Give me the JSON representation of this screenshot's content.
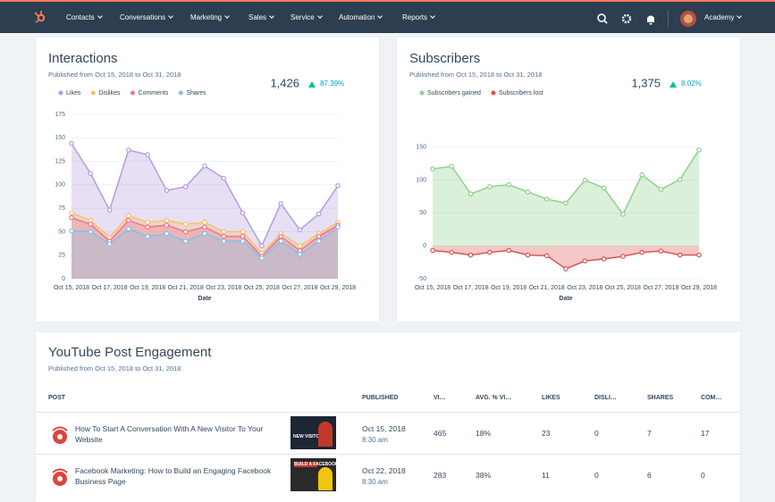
{
  "nav": {
    "items": [
      "Contacts",
      "Conversations",
      "Marketing",
      "Sales",
      "Service",
      "Automation",
      "Reports"
    ],
    "account": "Academy"
  },
  "chart_data": [
    {
      "type": "area",
      "title": "Interactions",
      "subtitle": "Published from Oct 15, 2018 to Oct 31, 2018",
      "total": "1,426",
      "change": "87.39%",
      "x_label": "Date",
      "categories": [
        "Oct 15, 2018",
        null,
        "Oct 17, 2018",
        null,
        "Oct 19, 2018",
        null,
        "Oct 21, 2018",
        null,
        "Oct 23, 2018",
        null,
        "Oct 25, 2018",
        null,
        "Oct 27, 2018",
        null,
        "Oct 29, 2018"
      ],
      "series": [
        {
          "name": "Likes",
          "color": "#b39ddb",
          "values": [
            144,
            112,
            73,
            137,
            132,
            94,
            98,
            120,
            107,
            70,
            35,
            80,
            52,
            69,
            99
          ]
        },
        {
          "name": "Dislikes",
          "color": "#f5c26b",
          "values": [
            70,
            62,
            44,
            67,
            60,
            62,
            58,
            60,
            50,
            50,
            27,
            48,
            35,
            48,
            60
          ]
        },
        {
          "name": "Comments",
          "color": "#f2738c",
          "values": [
            65,
            58,
            40,
            62,
            55,
            57,
            50,
            55,
            45,
            45,
            24,
            45,
            30,
            45,
            57
          ]
        },
        {
          "name": "Shares",
          "color": "#81c1ee",
          "values": [
            51,
            50,
            37,
            53,
            45,
            48,
            40,
            48,
            40,
            40,
            22,
            40,
            26,
            40,
            55
          ]
        }
      ],
      "ylim": [
        0,
        175
      ],
      "yticks": [
        0,
        25,
        50,
        75,
        100,
        125,
        150,
        175
      ],
      "grid": true,
      "legend": "top-left"
    },
    {
      "type": "area",
      "title": "Subscribers",
      "subtitle": "Published from Oct 15, 2018 to Oct 31, 2018",
      "total": "1,375",
      "change": "8.02%",
      "x_label": "Date",
      "categories": [
        "Oct 15, 2018",
        null,
        "Oct 17, 2018",
        null,
        "Oct 19, 2018",
        null,
        "Oct 21, 2018",
        null,
        "Oct 23, 2018",
        null,
        "Oct 25, 2018",
        null,
        "Oct 27, 2018",
        null,
        "Oct 29, 2018"
      ],
      "series": [
        {
          "name": "Subscribers gained",
          "color": "#8fd18b",
          "values": [
            117,
            121,
            79,
            90,
            93,
            82,
            71,
            65,
            100,
            88,
            48,
            108,
            86,
            101,
            146
          ]
        },
        {
          "name": "Subscribers lost",
          "color": "#d9534f",
          "values": [
            -7,
            -10,
            -14,
            -10,
            -7,
            -14,
            -15,
            -35,
            -23,
            -20,
            -16,
            -10,
            -8,
            -14,
            -14
          ]
        }
      ],
      "ylim": [
        -50,
        200
      ],
      "yticks": [
        -50,
        0,
        50,
        100,
        150
      ],
      "grid": true,
      "legend": "top-left"
    }
  ],
  "table": {
    "title": "YouTube Post Engagement",
    "subtitle": "Published from Oct 15, 2018 to Oct 31, 2018",
    "columns": [
      "POST",
      "PUBLISHED",
      "VI…",
      "AVG. % VI…",
      "LIKES",
      "DISLI…",
      "SHARES",
      "COM…"
    ],
    "rows": [
      {
        "post": "How To Start A Conversation With A New Visitor To Your Website",
        "thumbnail_text": "NEW VISITOR",
        "date": "Oct 15, 2018",
        "time": "8:30 am",
        "cells": [
          465,
          "18%",
          23,
          0,
          7,
          17
        ]
      },
      {
        "post": "Facebook Marketing: How to Build an Engaging Facebook Business Page",
        "thumbnail_text": "BUILD A FACEBOOK BUSINESS PAGE",
        "date": "Oct 22, 2018",
        "time": "8:30 am",
        "cells": [
          283,
          "38%",
          11,
          0,
          6,
          0
        ]
      }
    ]
  }
}
